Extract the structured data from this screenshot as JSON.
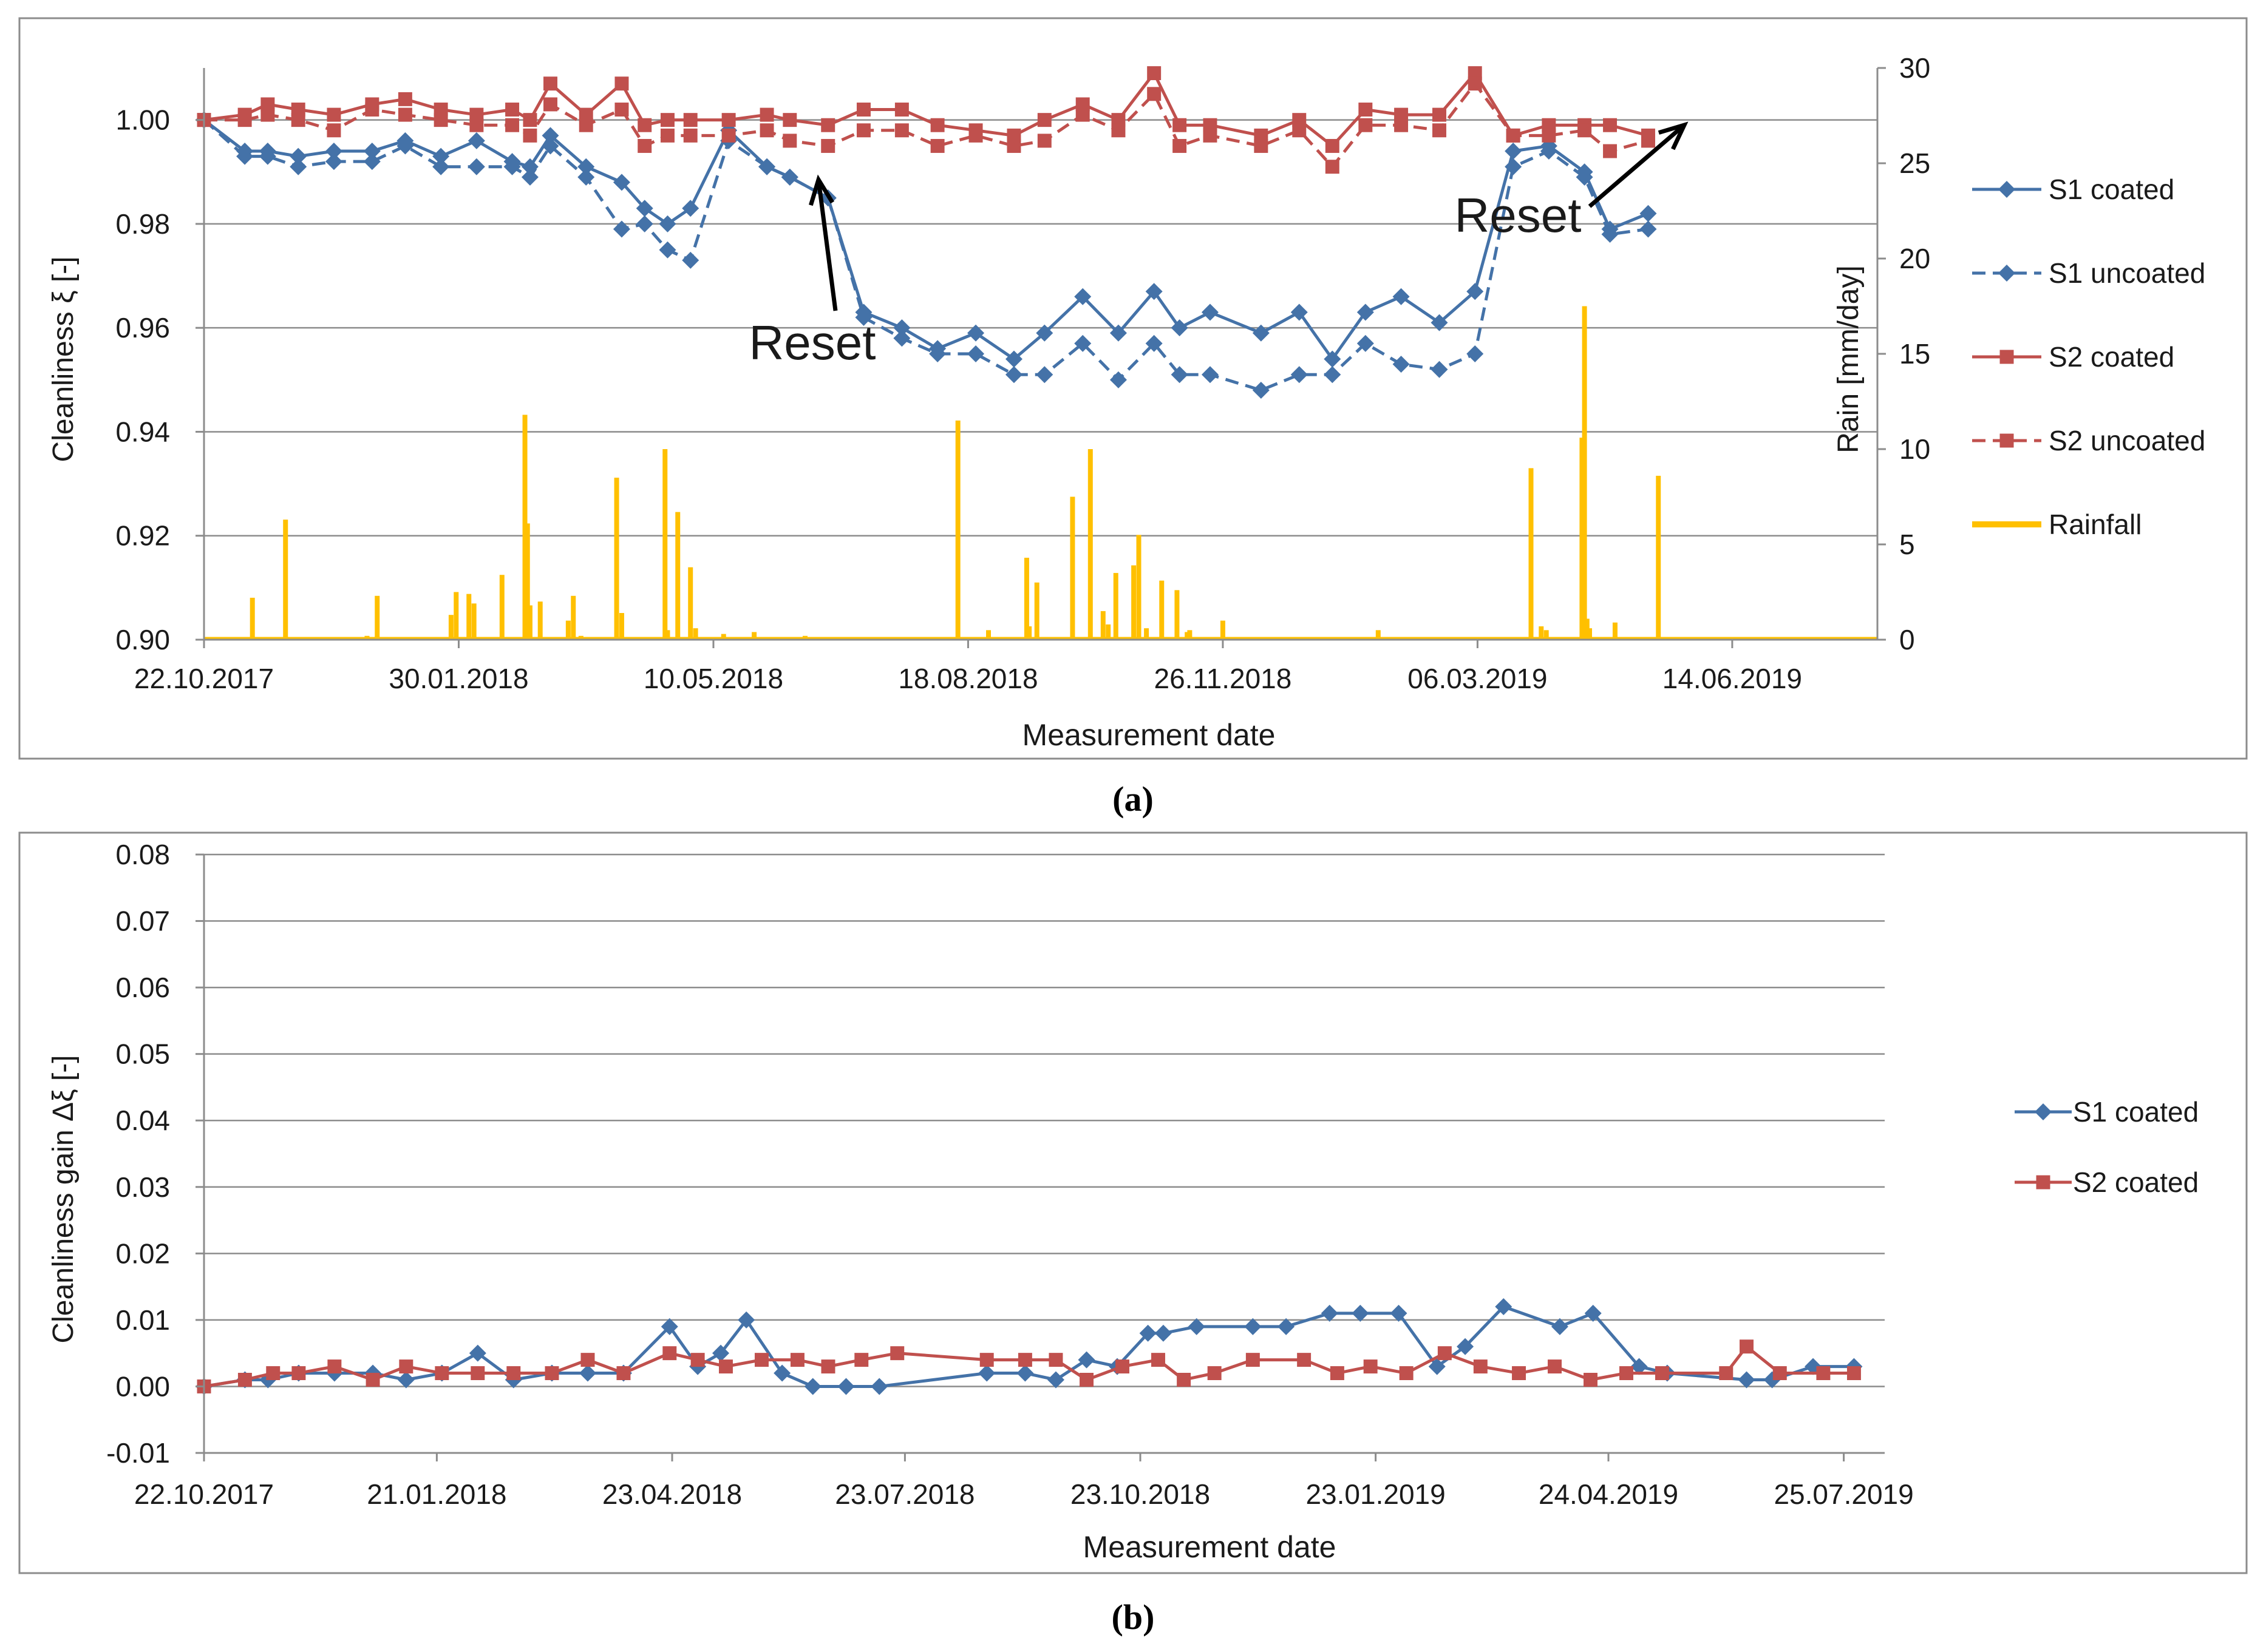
{
  "chart_data": [
    {
      "type": "line",
      "panel": "a",
      "caption": "(a)",
      "xlabel": "Measurement date",
      "ylabel": "Cleanliness ξ [-]",
      "y2label": "Rain [mm/day]",
      "x_start": "2017-10-22",
      "x_end": "2019-08-10",
      "x_ticks": [
        "22.10.2017",
        "30.01.2018",
        "10.05.2018",
        "18.08.2018",
        "26.11.2018",
        "06.03.2019",
        "14.06.2019"
      ],
      "ylim": [
        0.9,
        1.01
      ],
      "y_ticks": [
        "0.90",
        "0.92",
        "0.94",
        "0.96",
        "0.98",
        "1.00"
      ],
      "y_tick_values": [
        0.9,
        0.92,
        0.94,
        0.96,
        0.98,
        1.0
      ],
      "y2lim": [
        0,
        30
      ],
      "y2_ticks": [
        "0",
        "5",
        "10",
        "15",
        "20",
        "25",
        "30"
      ],
      "y2_tick_values": [
        0,
        5,
        10,
        15,
        20,
        25,
        30
      ],
      "dates": [
        "2017-10-22",
        "2017-11-07",
        "2017-11-16",
        "2017-11-28",
        "2017-12-12",
        "2017-12-27",
        "2018-01-09",
        "2018-01-23",
        "2018-02-06",
        "2018-02-20",
        "2018-02-27",
        "2018-03-07",
        "2018-03-21",
        "2018-04-04",
        "2018-04-13",
        "2018-04-22",
        "2018-05-01",
        "2018-05-16",
        "2018-05-31",
        "2018-06-09",
        "2018-06-24",
        "2018-07-08",
        "2018-07-23",
        "2018-08-06",
        "2018-08-21",
        "2018-09-05",
        "2018-09-17",
        "2018-10-02",
        "2018-10-16",
        "2018-10-30",
        "2018-11-09",
        "2018-11-21",
        "2018-12-11",
        "2018-12-26",
        "2019-01-08",
        "2019-01-21",
        "2019-02-04",
        "2019-02-19",
        "2019-03-05",
        "2019-03-20",
        "2019-04-03",
        "2019-04-17",
        "2019-04-27",
        "2019-05-12",
        "2019-05-26",
        "2019-06-09",
        "2019-06-17",
        "2019-07-04",
        "2019-07-17",
        "2019-07-31"
      ],
      "series": [
        {
          "name": "S1 coated",
          "color": "#4472a8",
          "dash": false,
          "marker": "diamond",
          "values": [
            1.0,
            0.994,
            0.994,
            0.993,
            0.994,
            0.994,
            0.996,
            0.993,
            0.996,
            0.992,
            0.991,
            0.997,
            0.991,
            0.988,
            0.983,
            0.98,
            0.983,
            0.998,
            0.991,
            0.989,
            0.985,
            0.963,
            0.96,
            0.956,
            0.959,
            0.954,
            0.959,
            0.966,
            0.959,
            0.967,
            0.96,
            0.963,
            0.959,
            0.963,
            0.954,
            0.963,
            0.966,
            0.961,
            0.967,
            0.994,
            0.995,
            0.99,
            0.979,
            0.982,
            null,
            null,
            null,
            null,
            null,
            null
          ]
        },
        {
          "name": "S1 uncoated",
          "color": "#4472a8",
          "dash": true,
          "marker": "diamond",
          "values": [
            1.0,
            0.993,
            0.993,
            0.991,
            0.992,
            0.992,
            0.995,
            0.991,
            0.991,
            0.991,
            0.989,
            0.995,
            0.989,
            0.979,
            0.98,
            0.975,
            0.973,
            0.996,
            0.991,
            0.989,
            0.985,
            0.962,
            0.958,
            0.955,
            0.955,
            0.951,
            0.951,
            0.957,
            0.95,
            0.957,
            0.951,
            0.951,
            0.948,
            0.951,
            0.951,
            0.957,
            0.953,
            0.952,
            0.955,
            0.991,
            0.994,
            0.989,
            0.978,
            0.979,
            null,
            null,
            null,
            null,
            null,
            null
          ]
        },
        {
          "name": "S2 coated",
          "color": "#c0504d",
          "dash": false,
          "marker": "square",
          "values": [
            1.0,
            1.001,
            1.003,
            1.002,
            1.001,
            1.003,
            1.004,
            1.002,
            1.001,
            1.002,
            1.0,
            1.007,
            1.001,
            1.007,
            0.999,
            1.0,
            1.0,
            1.0,
            1.001,
            1.0,
            0.999,
            1.002,
            1.002,
            0.999,
            0.998,
            0.997,
            1.0,
            1.003,
            1.0,
            1.009,
            0.999,
            0.999,
            0.997,
            1.0,
            0.995,
            1.002,
            1.001,
            1.001,
            1.009,
            0.997,
            0.999,
            0.999,
            0.999,
            0.997,
            null,
            null,
            null,
            null,
            null,
            null
          ]
        },
        {
          "name": "S2 uncoated",
          "color": "#c0504d",
          "dash": true,
          "marker": "square",
          "values": [
            1.0,
            1.0,
            1.001,
            1.0,
            0.998,
            1.002,
            1.001,
            1.0,
            0.999,
            0.999,
            0.997,
            1.003,
            0.999,
            1.002,
            0.995,
            0.997,
            0.997,
            0.997,
            0.998,
            0.996,
            0.995,
            0.998,
            0.998,
            0.995,
            0.997,
            0.995,
            0.996,
            1.001,
            0.998,
            1.005,
            0.995,
            0.997,
            0.995,
            0.998,
            0.991,
            0.999,
            0.999,
            0.998,
            1.007,
            0.997,
            0.997,
            0.998,
            0.994,
            0.996,
            null,
            null,
            null,
            null,
            null,
            null
          ]
        }
      ],
      "rainfall": {
        "name": "Rainfall",
        "color": "#ffc000",
        "dates": [
          "2017-11-10",
          "2017-11-23",
          "2017-12-25",
          "2017-12-29",
          "2018-01-27",
          "2018-01-29",
          "2018-02-03",
          "2018-02-05",
          "2018-02-16",
          "2018-02-25",
          "2018-02-26",
          "2018-02-27",
          "2018-03-03",
          "2018-03-14",
          "2018-03-16",
          "2018-03-19",
          "2018-04-02",
          "2018-04-04",
          "2018-04-21",
          "2018-04-22",
          "2018-04-26",
          "2018-05-01",
          "2018-05-03",
          "2018-05-14",
          "2018-05-26",
          "2018-06-15",
          "2018-08-14",
          "2018-08-26",
          "2018-09-10",
          "2018-09-11",
          "2018-09-14",
          "2018-09-28",
          "2018-10-05",
          "2018-10-10",
          "2018-10-12",
          "2018-10-15",
          "2018-10-22",
          "2018-10-24",
          "2018-10-27",
          "2018-11-02",
          "2018-11-08",
          "2018-11-12",
          "2018-11-13",
          "2018-11-26",
          "2019-01-26",
          "2019-02-04",
          "2019-03-27",
          "2019-03-31",
          "2019-04-02",
          "2019-04-16",
          "2019-04-17",
          "2019-04-18",
          "2019-04-19",
          "2019-04-29",
          "2019-05-16"
        ],
        "values": [
          2.2,
          6.3,
          0.2,
          2.3,
          1.3,
          2.5,
          2.4,
          1.9,
          3.4,
          11.8,
          6.1,
          1.8,
          2.0,
          1.0,
          2.3,
          0.2,
          8.5,
          1.4,
          10.0,
          0.5,
          6.7,
          3.8,
          0.6,
          0.3,
          0.4,
          0.2,
          11.5,
          0.5,
          4.3,
          0.7,
          3.0,
          7.5,
          10.0,
          1.5,
          0.8,
          3.5,
          3.9,
          5.5,
          0.6,
          3.1,
          2.6,
          0.4,
          0.5,
          1.0,
          0.5,
          0.1,
          9.0,
          0.7,
          0.5,
          10.6,
          17.5,
          1.1,
          0.6,
          0.9,
          8.6
        ]
      },
      "annotations": [
        {
          "text": "Reset",
          "date": "2018-06-09"
        },
        {
          "text": "Reset",
          "date": "2019-06-09"
        }
      ]
    },
    {
      "type": "line",
      "panel": "b",
      "caption": "(b)",
      "xlabel": "Measurement date",
      "ylabel": "Cleanliness gain Δξ [-]",
      "x_start": "2017-10-22",
      "x_end": "2019-08-10",
      "x_ticks": [
        "22.10.2017",
        "21.01.2018",
        "23.04.2018",
        "23.07.2018",
        "23.10.2018",
        "23.01.2019",
        "24.04.2019",
        "25.07.2019"
      ],
      "ylim": [
        -0.01,
        0.08
      ],
      "y_ticks": [
        "-0.01",
        "0.00",
        "0.01",
        "0.02",
        "0.03",
        "0.04",
        "0.05",
        "0.06",
        "0.07",
        "0.08"
      ],
      "y_tick_values": [
        -0.01,
        0.0,
        0.01,
        0.02,
        0.03,
        0.04,
        0.05,
        0.06,
        0.07,
        0.08
      ],
      "series": [
        {
          "name": "S1 coated",
          "color": "#4472a8",
          "marker": "diamond",
          "dates": [
            "2017-10-22",
            "2017-11-07",
            "2017-11-16",
            "2017-11-28",
            "2017-12-12",
            "2017-12-27",
            "2018-01-09",
            "2018-01-23",
            "2018-02-06",
            "2018-02-20",
            "2018-03-07",
            "2018-03-21",
            "2018-04-04",
            "2018-04-22",
            "2018-05-03",
            "2018-05-12",
            "2018-05-22",
            "2018-06-05",
            "2018-06-17",
            "2018-06-30",
            "2018-07-13",
            "2018-08-24",
            "2018-09-08",
            "2018-09-20",
            "2018-10-02",
            "2018-10-14",
            "2018-10-26",
            "2018-11-01",
            "2018-11-14",
            "2018-12-06",
            "2018-12-19",
            "2019-01-05",
            "2019-01-17",
            "2019-02-01",
            "2019-02-16",
            "2019-02-27",
            "2019-03-14",
            "2019-04-05",
            "2019-04-18",
            "2019-05-06",
            "2019-05-17",
            "2019-06-17",
            "2019-06-27",
            "2019-07-13",
            "2019-07-29"
          ],
          "values": [
            0.0,
            0.001,
            0.001,
            0.002,
            0.002,
            0.002,
            0.001,
            0.002,
            0.005,
            0.001,
            0.002,
            0.002,
            0.002,
            0.009,
            0.003,
            0.005,
            0.01,
            0.002,
            0.0,
            0.0,
            0.0,
            0.002,
            0.002,
            0.001,
            0.004,
            0.003,
            0.008,
            0.008,
            0.009,
            0.009,
            0.009,
            0.011,
            0.011,
            0.011,
            0.003,
            0.006,
            0.012,
            0.009,
            0.011,
            0.003,
            0.002,
            0.001,
            0.001,
            0.003,
            0.003
          ]
        },
        {
          "name": "S2 coated",
          "color": "#c0504d",
          "marker": "square",
          "dates": [
            "2017-10-22",
            "2017-11-07",
            "2017-11-18",
            "2017-11-28",
            "2017-12-12",
            "2017-12-27",
            "2018-01-09",
            "2018-01-23",
            "2018-02-06",
            "2018-02-20",
            "2018-03-07",
            "2018-03-21",
            "2018-04-04",
            "2018-04-22",
            "2018-05-03",
            "2018-05-14",
            "2018-05-28",
            "2018-06-11",
            "2018-06-23",
            "2018-07-06",
            "2018-07-20",
            "2018-08-24",
            "2018-09-08",
            "2018-09-20",
            "2018-10-02",
            "2018-10-16",
            "2018-10-30",
            "2018-11-09",
            "2018-11-21",
            "2018-12-06",
            "2018-12-26",
            "2019-01-08",
            "2019-01-21",
            "2019-02-04",
            "2019-02-19",
            "2019-03-05",
            "2019-03-20",
            "2019-04-03",
            "2019-04-17",
            "2019-05-01",
            "2019-05-15",
            "2019-06-09",
            "2019-06-17",
            "2019-06-30",
            "2019-07-17",
            "2019-07-29"
          ],
          "values": [
            0.0,
            0.001,
            0.002,
            0.002,
            0.003,
            0.001,
            0.003,
            0.002,
            0.002,
            0.002,
            0.002,
            0.004,
            0.002,
            0.005,
            0.004,
            0.003,
            0.004,
            0.004,
            0.003,
            0.004,
            0.005,
            0.004,
            0.004,
            0.004,
            0.001,
            0.003,
            0.004,
            0.001,
            0.002,
            0.004,
            0.004,
            0.002,
            0.003,
            0.002,
            0.005,
            0.003,
            0.002,
            0.003,
            0.001,
            0.002,
            0.002,
            0.002,
            0.006,
            0.002,
            0.002,
            0.002
          ]
        }
      ]
    }
  ]
}
